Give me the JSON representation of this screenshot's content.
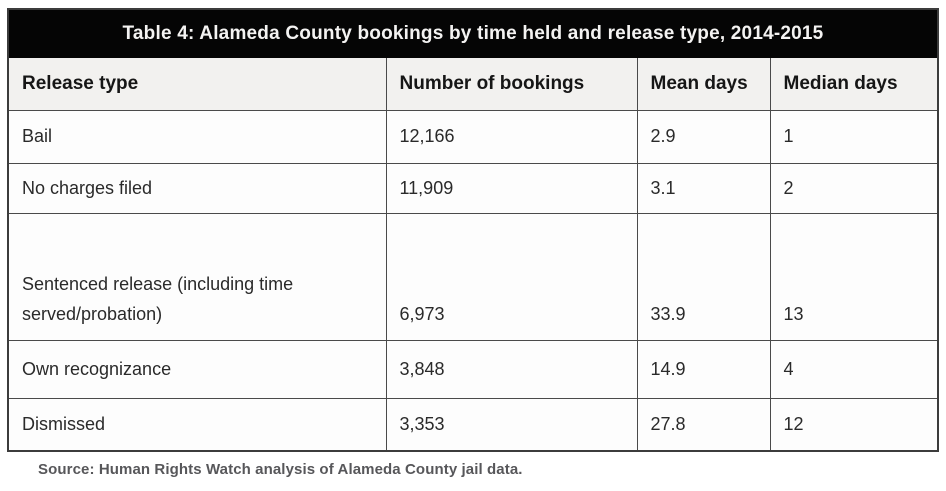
{
  "table": {
    "title": "Table 4: Alameda County bookings by time held and release type, 2014-2015",
    "columns": [
      "Release type",
      "Number of bookings",
      "Mean days",
      "Median days"
    ],
    "rows": [
      [
        "Bail",
        "12,166",
        "2.9",
        "1"
      ],
      [
        "No charges filed",
        "11,909",
        "3.1",
        "2"
      ],
      [
        "Sentenced release (including time served/probation)",
        "6,973",
        "33.9",
        "13"
      ],
      [
        "Own recognizance",
        "3,848",
        "14.9",
        "4"
      ],
      [
        "Dismissed",
        "3,353",
        "27.8",
        "12"
      ]
    ]
  },
  "source_note": "Source: Human Rights Watch analysis of Alameda County jail data.",
  "colors": {
    "title_bar_bg": "#050505",
    "title_bar_text": "#f4f3f2",
    "header_row_bg": "#f2f1ef",
    "body_bg": "#fdfdfd",
    "border": "#4a4a4a",
    "body_text": "#2a2a2a",
    "source_text": "#57575a"
  },
  "chart_data": {
    "type": "table",
    "title": "Table 4: Alameda County bookings by time held and release type, 2014-2015",
    "columns": [
      "Release type",
      "Number of bookings",
      "Mean days",
      "Median days"
    ],
    "rows": [
      {
        "release_type": "Bail",
        "number_of_bookings": 12166,
        "mean_days": 2.9,
        "median_days": 1
      },
      {
        "release_type": "No charges filed",
        "number_of_bookings": 11909,
        "mean_days": 3.1,
        "median_days": 2
      },
      {
        "release_type": "Sentenced release (including time served/probation)",
        "number_of_bookings": 6973,
        "mean_days": 33.9,
        "median_days": 13
      },
      {
        "release_type": "Own recognizance",
        "number_of_bookings": 3848,
        "mean_days": 14.9,
        "median_days": 4
      },
      {
        "release_type": "Dismissed",
        "number_of_bookings": 3353,
        "mean_days": 27.8,
        "median_days": 12
      }
    ],
    "source": "Source: Human Rights Watch analysis of Alameda County jail data."
  }
}
